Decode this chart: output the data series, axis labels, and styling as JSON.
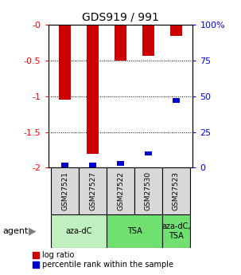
{
  "title": "GDS919 / 991",
  "samples": [
    "GSM27521",
    "GSM27527",
    "GSM27522",
    "GSM27530",
    "GSM27523"
  ],
  "log_ratio": [
    -1.05,
    -1.8,
    -0.5,
    -0.43,
    -0.15
  ],
  "percentile_rank": [
    0.02,
    0.02,
    0.03,
    0.1,
    0.47
  ],
  "ylim_left": [
    -2.0,
    0.0
  ],
  "ylim_right": [
    0.0,
    1.0
  ],
  "yticks_left": [
    -2.0,
    -1.5,
    -1.0,
    -0.5,
    0.0
  ],
  "ytick_labels_left": [
    "-2",
    "-1.5",
    "-1",
    "-0.5",
    "-0"
  ],
  "yticks_right": [
    0.0,
    0.25,
    0.5,
    0.75,
    1.0
  ],
  "ytick_labels_right": [
    "0",
    "25",
    "50",
    "75",
    "100%"
  ],
  "gridlines": [
    -0.5,
    -1.0,
    -1.5
  ],
  "bar_width": 0.45,
  "blue_bar_width": 0.25,
  "red_color": "#cc0000",
  "blue_color": "#0000cc",
  "bg_color": "#d8d8d8",
  "group_color_1": "#c0f0c0",
  "group_color_2": "#70e070",
  "legend_red": "log ratio",
  "legend_blue": "percentile rank within the sample",
  "agent_label": "agent"
}
